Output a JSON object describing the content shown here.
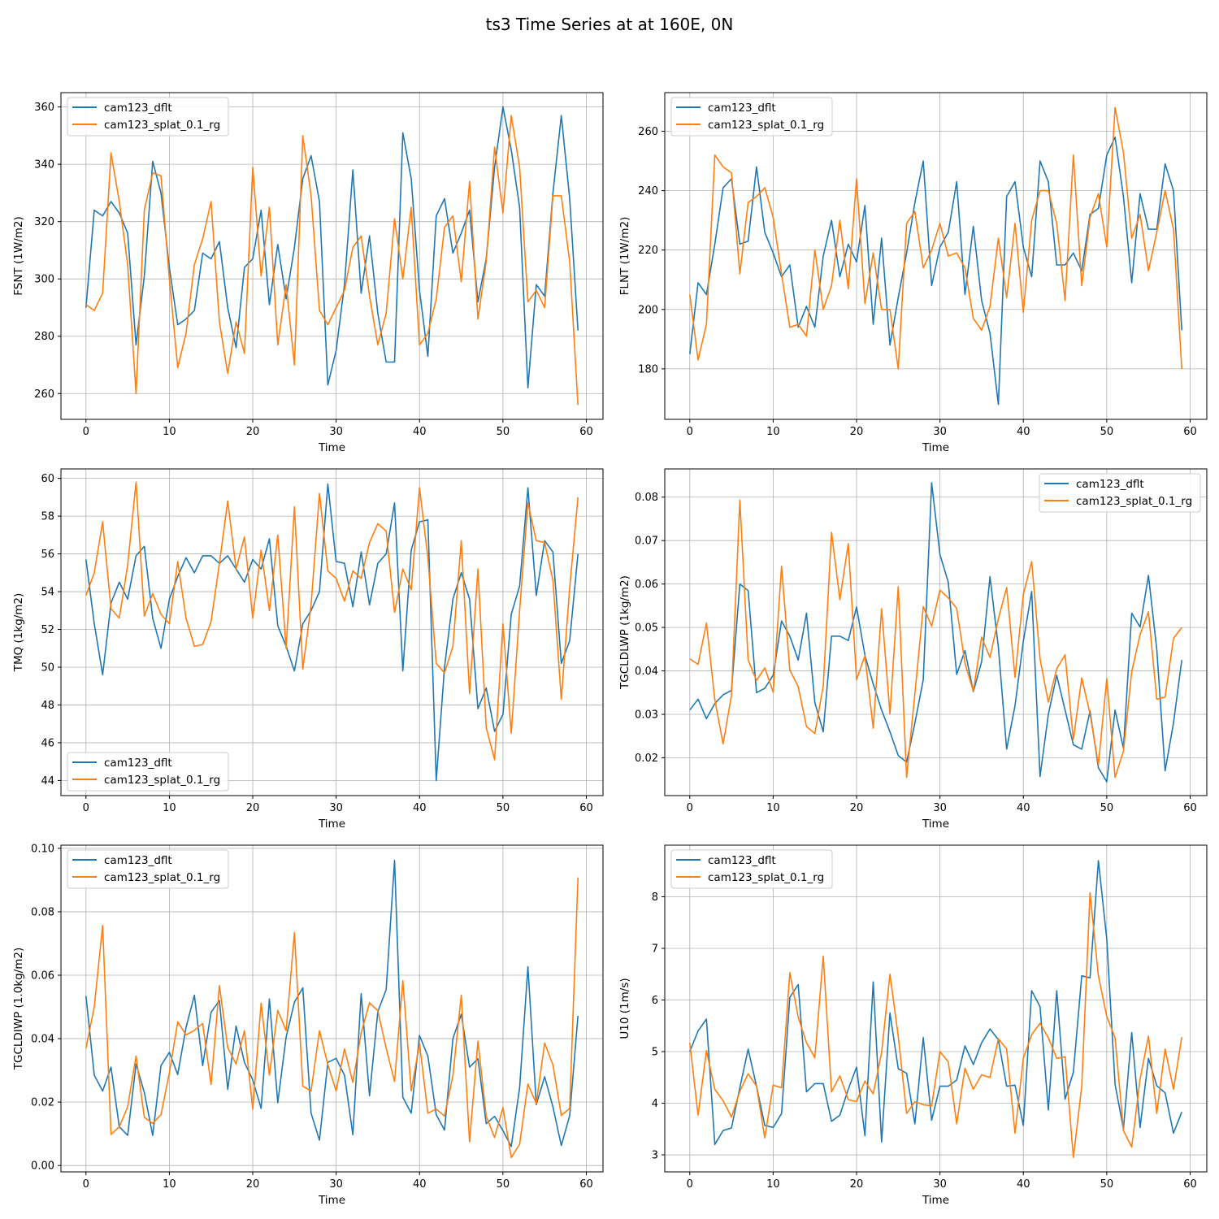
{
  "figure": {
    "suptitle": "ts3 Time Series at at 160E, 0N"
  },
  "colors": {
    "series1": "#1f77b4",
    "series2": "#ff7f0e",
    "grid": "#b0b0b0",
    "axis": "#000000"
  },
  "chart_data": [
    {
      "id": "p1",
      "type": "line",
      "title": "",
      "xlabel": "Time",
      "ylabel": "FSNT (1W/m2)",
      "xlim": [
        -3,
        62
      ],
      "ylim": [
        251,
        365
      ],
      "xticks": [
        0,
        10,
        20,
        30,
        40,
        50,
        60
      ],
      "yticks": [
        260,
        280,
        300,
        320,
        340,
        360
      ],
      "legend": "upper-left",
      "series": [
        {
          "name": "cam123_dflt",
          "values": [
            290,
            324,
            322,
            327,
            323,
            316,
            277,
            301,
            341,
            330,
            304,
            284,
            286,
            289,
            309,
            307,
            313,
            290,
            276,
            304,
            307,
            324,
            291,
            312,
            293,
            311,
            335,
            343,
            327,
            263,
            275,
            298,
            338,
            295,
            315,
            288,
            271,
            271,
            351,
            335,
            296,
            273,
            322,
            328,
            309,
            316,
            324,
            292,
            307,
            339,
            360,
            345,
            325,
            262,
            298,
            294,
            330,
            357,
            328,
            282
          ]
        },
        {
          "name": "cam123_splat_0.1_rg",
          "values": [
            291,
            289,
            295,
            344,
            327,
            305,
            260,
            324,
            337,
            336,
            300,
            269,
            281,
            305,
            314,
            327,
            285,
            267,
            285,
            274,
            339,
            301,
            325,
            277,
            298,
            270,
            350,
            329,
            289,
            284,
            290,
            296,
            311,
            315,
            294,
            277,
            288,
            321,
            300,
            325,
            277,
            281,
            293,
            318,
            322,
            299,
            334,
            286,
            306,
            346,
            323,
            357,
            339,
            292,
            296,
            290,
            329,
            329,
            306,
            256
          ]
        }
      ]
    },
    {
      "id": "p2",
      "type": "line",
      "title": "",
      "xlabel": "Time",
      "ylabel": "FLNT (1W/m2)",
      "xlim": [
        -3,
        62
      ],
      "ylim": [
        163,
        273
      ],
      "xticks": [
        0,
        10,
        20,
        30,
        40,
        50,
        60
      ],
      "yticks": [
        180,
        200,
        220,
        240,
        260
      ],
      "legend": "upper-left",
      "series": [
        {
          "name": "cam123_dflt",
          "values": [
            185,
            209,
            205,
            222,
            241,
            244,
            222,
            223,
            248,
            226,
            219,
            211,
            215,
            194,
            201,
            194,
            218,
            230,
            211,
            222,
            216,
            235,
            195,
            224,
            188,
            204,
            219,
            236,
            250,
            208,
            221,
            226,
            243,
            205,
            228,
            203,
            192,
            168,
            238,
            243,
            221,
            211,
            250,
            243,
            215,
            215,
            219,
            213,
            232,
            234,
            252,
            258,
            238,
            209,
            239,
            227,
            227,
            249,
            240,
            193
          ]
        },
        {
          "name": "cam123_splat_0.1_rg",
          "values": [
            205,
            183,
            195,
            252,
            248,
            246,
            212,
            236,
            238,
            241,
            231,
            212,
            194,
            195,
            191,
            220,
            200,
            208,
            230,
            207,
            244,
            202,
            219,
            200,
            200,
            180,
            229,
            233,
            214,
            220,
            229,
            218,
            219,
            214,
            197,
            193,
            201,
            224,
            204,
            229,
            199,
            230,
            240,
            240,
            229,
            203,
            252,
            208,
            231,
            239,
            221,
            268,
            253,
            224,
            232,
            213,
            226,
            240,
            227,
            180
          ]
        }
      ]
    },
    {
      "id": "p3",
      "type": "line",
      "title": "",
      "xlabel": "Time",
      "ylabel": "TMQ (1kg/m2)",
      "xlim": [
        -3,
        62
      ],
      "ylim": [
        43.2,
        60.5
      ],
      "xticks": [
        0,
        10,
        20,
        30,
        40,
        50,
        60
      ],
      "yticks": [
        44,
        46,
        48,
        50,
        52,
        54,
        56,
        58,
        60
      ],
      "legend": "lower-left",
      "series": [
        {
          "name": "cam123_dflt",
          "values": [
            55.7,
            52.3,
            49.6,
            53.4,
            54.5,
            53.6,
            55.9,
            56.4,
            52.6,
            51.0,
            53.6,
            54.8,
            55.8,
            55.0,
            55.9,
            55.9,
            55.5,
            55.9,
            55.2,
            54.5,
            55.7,
            55.2,
            56.8,
            52.2,
            51.1,
            49.8,
            52.3,
            53.0,
            54.0,
            59.7,
            55.6,
            55.5,
            53.2,
            56.1,
            53.3,
            55.5,
            56.0,
            58.7,
            49.8,
            56.2,
            57.7,
            57.8,
            44.0,
            50.0,
            53.6,
            55.0,
            53.6,
            47.8,
            48.9,
            46.6,
            47.5,
            52.8,
            54.3,
            59.5,
            53.8,
            56.7,
            56.1,
            50.2,
            51.4,
            56.0
          ]
        },
        {
          "name": "cam123_splat_0.1_rg",
          "values": [
            53.8,
            55.0,
            57.7,
            53.1,
            52.6,
            55.4,
            59.8,
            52.7,
            53.9,
            52.8,
            52.3,
            55.6,
            52.6,
            51.1,
            51.2,
            52.4,
            55.5,
            58.8,
            55.2,
            56.9,
            52.6,
            56.2,
            53.0,
            57.0,
            51.0,
            58.5,
            49.9,
            53.3,
            59.2,
            55.1,
            54.7,
            53.5,
            55.1,
            54.7,
            56.6,
            57.6,
            57.2,
            52.9,
            55.2,
            54.1,
            59.5,
            55.8,
            50.2,
            49.7,
            51.1,
            56.7,
            48.6,
            55.2,
            46.8,
            45.1,
            52.3,
            46.5,
            53.0,
            58.7,
            56.7,
            56.6,
            54.6,
            48.3,
            54.2,
            59.0
          ]
        }
      ]
    },
    {
      "id": "p4",
      "type": "line",
      "title": "",
      "xlabel": "Time",
      "ylabel": "TGCLDLWP (1kg/m2)",
      "xlim": [
        -3,
        62
      ],
      "ylim": [
        0.0113,
        0.0865
      ],
      "xticks": [
        0,
        10,
        20,
        30,
        40,
        50,
        60
      ],
      "yticks": [
        0.02,
        0.03,
        0.04,
        0.05,
        0.06,
        0.07,
        0.08
      ],
      "legend": "upper-right",
      "series": [
        {
          "name": "cam123_dflt",
          "values": [
            0.031,
            0.0335,
            0.029,
            0.0325,
            0.0345,
            0.0355,
            0.06,
            0.0585,
            0.035,
            0.036,
            0.039,
            0.0515,
            0.048,
            0.0425,
            0.0533,
            0.0327,
            0.026,
            0.048,
            0.048,
            0.047,
            0.0547,
            0.0436,
            0.037,
            0.031,
            0.026,
            0.0205,
            0.019,
            0.028,
            0.038,
            0.0833,
            0.0668,
            0.0604,
            0.0392,
            0.0447,
            0.0352,
            0.0421,
            0.0617,
            0.0455,
            0.022,
            0.032,
            0.0468,
            0.0583,
            0.0157,
            0.03,
            0.039,
            0.031,
            0.023,
            0.022,
            0.0308,
            0.0177,
            0.0145,
            0.031,
            0.0222,
            0.0533,
            0.0501,
            0.062,
            0.045,
            0.017,
            0.028,
            0.0425
          ]
        },
        {
          "name": "cam123_splat_0.1_rg",
          "values": [
            0.0428,
            0.0415,
            0.051,
            0.0334,
            0.0232,
            0.0344,
            0.0793,
            0.0425,
            0.0378,
            0.0407,
            0.0351,
            0.0641,
            0.0402,
            0.0364,
            0.0272,
            0.0256,
            0.0365,
            0.0719,
            0.0564,
            0.0693,
            0.038,
            0.0435,
            0.0268,
            0.0543,
            0.0301,
            0.0594,
            0.0155,
            0.0348,
            0.0548,
            0.0503,
            0.0586,
            0.0568,
            0.0544,
            0.0418,
            0.0353,
            0.0478,
            0.0431,
            0.052,
            0.0592,
            0.0385,
            0.0576,
            0.0652,
            0.0428,
            0.0328,
            0.0405,
            0.0437,
            0.0242,
            0.0384,
            0.0301,
            0.0184,
            0.0382,
            0.0155,
            0.0215,
            0.0398,
            0.0484,
            0.0536,
            0.0335,
            0.034,
            0.0475,
            0.05
          ]
        }
      ]
    },
    {
      "id": "p5",
      "type": "line",
      "title": "",
      "xlabel": "Time",
      "ylabel": "TGCLDIWP (1.0kg/m2)",
      "xlim": [
        -3,
        62
      ],
      "ylim": [
        -0.002,
        0.101
      ],
      "xticks": [
        0,
        10,
        20,
        30,
        40,
        50,
        60
      ],
      "yticks": [
        0.0,
        0.02,
        0.04,
        0.06,
        0.08,
        0.1
      ],
      "legend": "upper-left",
      "series": [
        {
          "name": "cam123_dflt",
          "values": [
            0.0535,
            0.0285,
            0.0235,
            0.031,
            0.0122,
            0.0095,
            0.032,
            0.023,
            0.0095,
            0.0315,
            0.0357,
            0.0287,
            0.0435,
            0.0537,
            0.0315,
            0.0483,
            0.052,
            0.024,
            0.044,
            0.0325,
            0.027,
            0.018,
            0.0525,
            0.0198,
            0.0405,
            0.0515,
            0.056,
            0.0165,
            0.008,
            0.0325,
            0.0338,
            0.0285,
            0.0097,
            0.0542,
            0.022,
            0.0485,
            0.0555,
            0.0962,
            0.0215,
            0.0165,
            0.041,
            0.0345,
            0.016,
            0.0112,
            0.04,
            0.0477,
            0.031,
            0.0337,
            0.0132,
            0.0155,
            0.011,
            0.006,
            0.0245,
            0.0627,
            0.0192,
            0.028,
            0.0185,
            0.0063,
            0.0157,
            0.0472
          ]
        },
        {
          "name": "cam123_splat_0.1_rg",
          "values": [
            0.037,
            0.05,
            0.0757,
            0.0098,
            0.0122,
            0.0185,
            0.0345,
            0.0152,
            0.0133,
            0.016,
            0.0292,
            0.0453,
            0.0412,
            0.0426,
            0.0448,
            0.0255,
            0.0567,
            0.0372,
            0.032,
            0.0425,
            0.0177,
            0.0512,
            0.0285,
            0.0489,
            0.0425,
            0.0734,
            0.025,
            0.0235,
            0.0425,
            0.0318,
            0.0235,
            0.0368,
            0.0262,
            0.0418,
            0.0513,
            0.0488,
            0.037,
            0.0265,
            0.0583,
            0.0235,
            0.0385,
            0.0165,
            0.0178,
            0.0156,
            0.0283,
            0.0537,
            0.0075,
            0.0392,
            0.0155,
            0.0088,
            0.0183,
            0.0025,
            0.0067,
            0.0257,
            0.0195,
            0.0386,
            0.0317,
            0.0158,
            0.018,
            0.0908
          ]
        }
      ]
    },
    {
      "id": "p6",
      "type": "line",
      "title": "",
      "xlabel": "Time",
      "ylabel": "U10 (1m/s)",
      "xlim": [
        -3,
        62
      ],
      "ylim": [
        2.67,
        9.0
      ],
      "xticks": [
        0,
        10,
        20,
        30,
        40,
        50,
        60
      ],
      "yticks": [
        3,
        4,
        5,
        6,
        7,
        8
      ],
      "legend": "upper-left",
      "series": [
        {
          "name": "cam123_dflt",
          "values": [
            5.0,
            5.4,
            5.63,
            3.2,
            3.47,
            3.52,
            4.3,
            5.05,
            4.33,
            3.57,
            3.53,
            3.8,
            6.05,
            6.3,
            4.22,
            4.38,
            4.38,
            3.65,
            3.77,
            4.27,
            4.7,
            3.37,
            6.35,
            3.25,
            5.75,
            4.67,
            4.58,
            3.6,
            5.27,
            3.67,
            4.33,
            4.33,
            4.45,
            5.11,
            4.75,
            5.17,
            5.44,
            5.23,
            4.33,
            4.35,
            3.57,
            6.18,
            5.87,
            3.87,
            6.18,
            4.08,
            4.6,
            6.47,
            6.43,
            8.7,
            7.18,
            4.37,
            3.5,
            5.37,
            3.53,
            4.87,
            4.34,
            4.2,
            3.42,
            3.83
          ]
        },
        {
          "name": "cam123_splat_0.1_rg",
          "values": [
            5.17,
            3.77,
            5.02,
            4.27,
            4.05,
            3.73,
            4.23,
            4.57,
            4.33,
            3.33,
            4.35,
            4.3,
            6.53,
            5.67,
            5.17,
            4.88,
            6.85,
            4.22,
            4.53,
            4.07,
            4.03,
            4.43,
            4.18,
            4.98,
            6.5,
            5.3,
            3.8,
            4.03,
            3.97,
            3.95,
            5.0,
            4.8,
            3.6,
            4.68,
            4.27,
            4.55,
            4.5,
            5.25,
            5.05,
            3.42,
            4.87,
            5.33,
            5.55,
            5.27,
            4.87,
            4.9,
            2.95,
            4.33,
            8.08,
            6.47,
            5.68,
            5.27,
            3.47,
            3.15,
            4.47,
            5.3,
            3.8,
            5.05,
            4.27,
            5.28
          ]
        }
      ]
    }
  ]
}
